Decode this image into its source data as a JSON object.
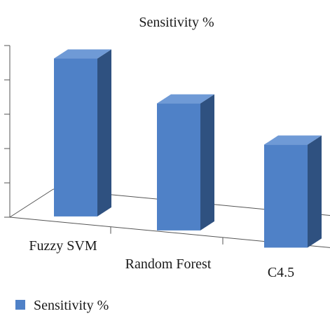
{
  "chart_data": {
    "type": "bar",
    "title": "Sensitivity %",
    "categories": [
      "Fuzzy SVM",
      "Random Forest",
      "C4.5"
    ],
    "series": [
      {
        "name": "Sensitivity %",
        "values": [
          96,
          87,
          80
        ]
      }
    ],
    "xlabel": "",
    "ylabel": "",
    "ylim": [
      50,
      100
    ],
    "ytick_labels_visible": false,
    "grid": false,
    "legend_position": "bottom-left",
    "style": "3d-column"
  },
  "colors": {
    "bar_front": "#4f81c7",
    "bar_side": "#2f5180",
    "bar_top": "#6f9ad6",
    "axis": "#555555",
    "text": "#1a1a1a"
  }
}
